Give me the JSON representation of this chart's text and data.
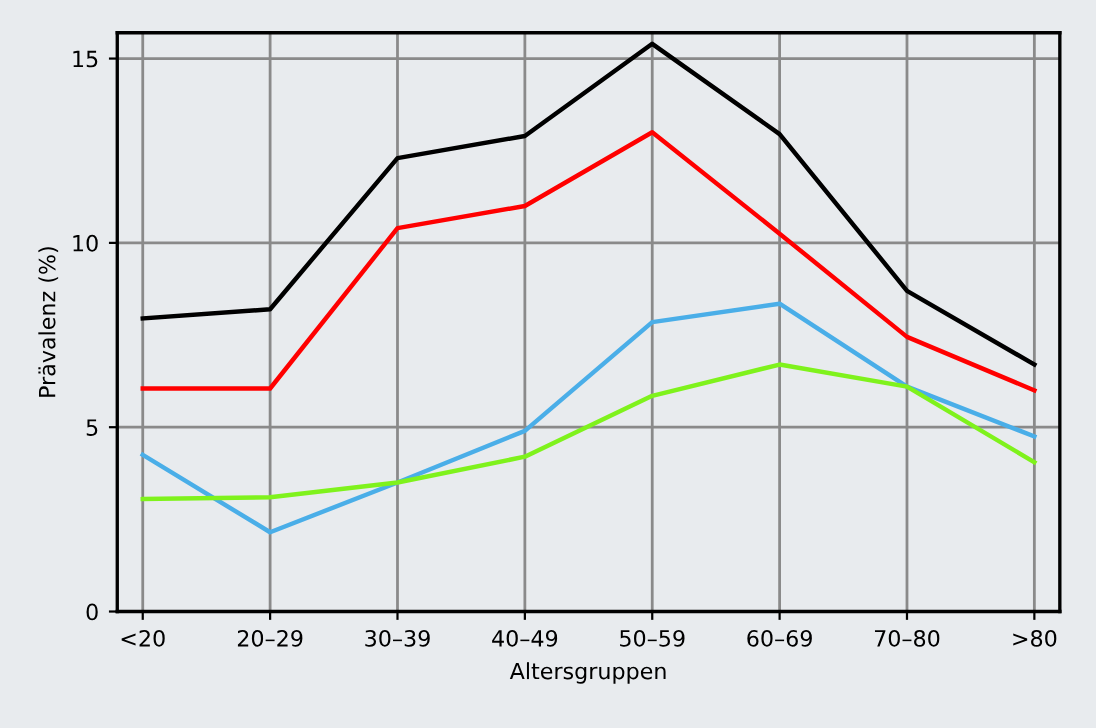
{
  "chart_data": {
    "type": "line",
    "xlabel": "Altersgruppen",
    "ylabel": "Prävalenz (%)",
    "categories": [
      "<20",
      "20–29",
      "30–39",
      "40–49",
      "50–59",
      "60–69",
      "70–80",
      ">80"
    ],
    "series": [
      {
        "color": "#000000",
        "values": [
          7.95,
          8.2,
          12.3,
          12.9,
          15.4,
          12.95,
          8.7,
          6.7
        ]
      },
      {
        "color": "#ff0000",
        "values": [
          6.05,
          6.05,
          10.4,
          11.0,
          13.0,
          10.25,
          7.45,
          6.0
        ]
      },
      {
        "color": "#4aaee8",
        "values": [
          4.25,
          2.15,
          3.5,
          4.9,
          7.85,
          8.35,
          6.1,
          4.75
        ]
      },
      {
        "color": "#7ff21c",
        "values": [
          3.05,
          3.1,
          3.5,
          4.2,
          5.85,
          6.7,
          6.1,
          4.05
        ]
      }
    ],
    "ylim": [
      0,
      15.7
    ],
    "yticks": [
      0,
      5,
      10,
      15
    ],
    "grid": true,
    "marker": "none",
    "line_style": "solid"
  }
}
